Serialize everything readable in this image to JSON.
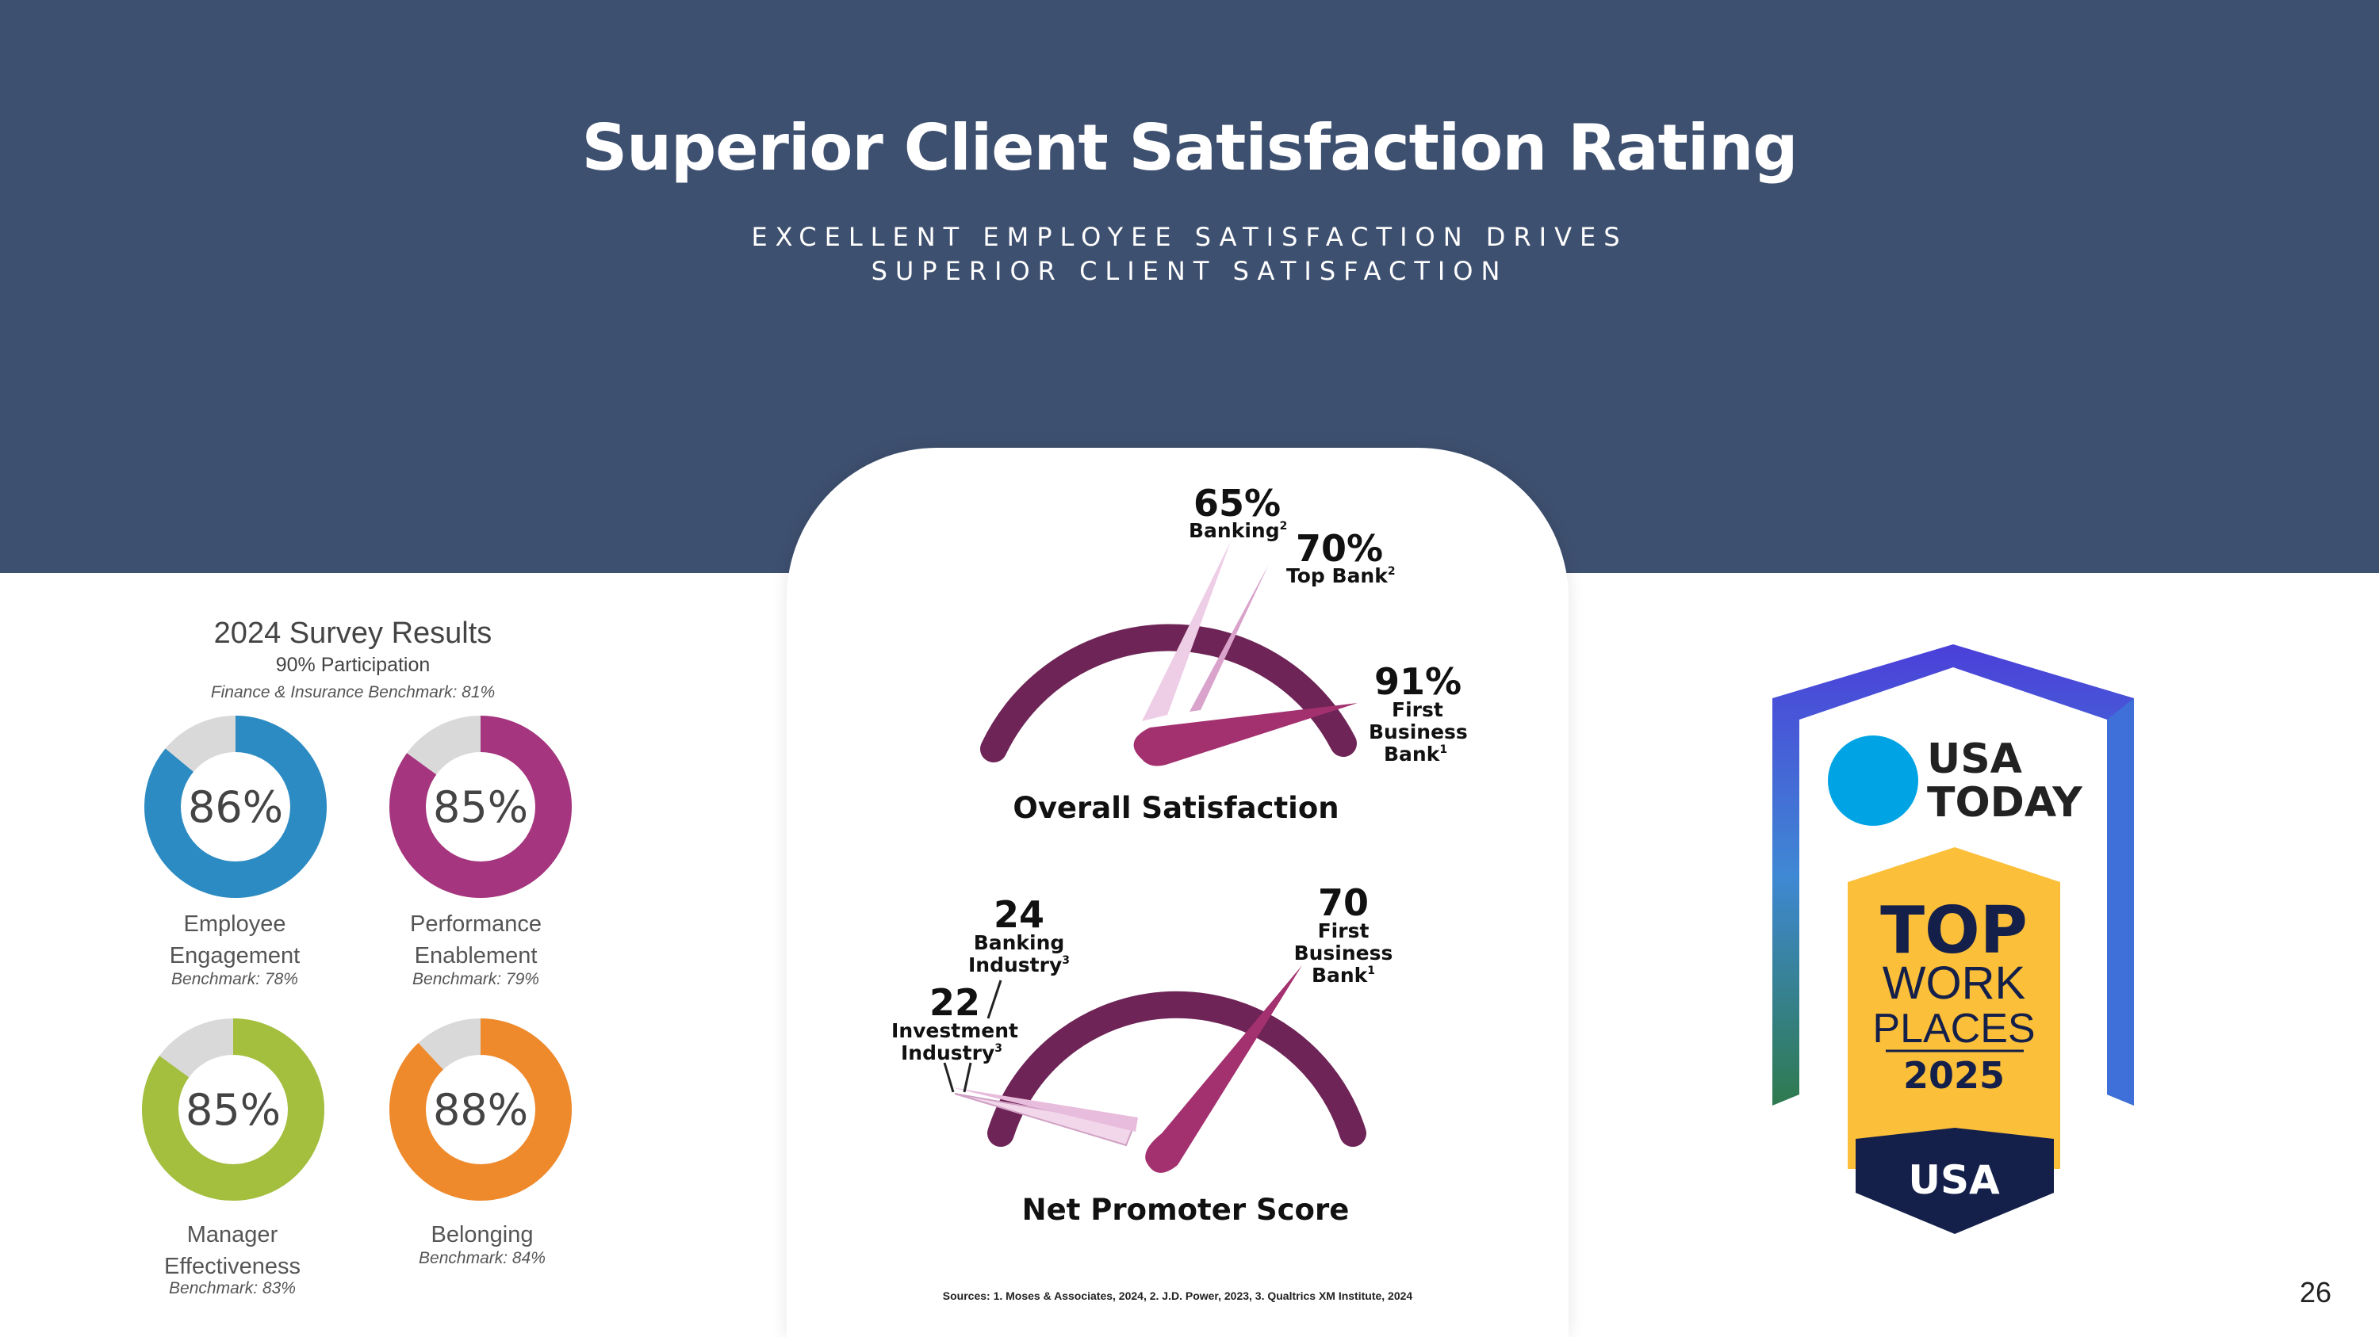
{
  "header": {
    "title": "Superior Client Satisfaction Rating",
    "subtitle_line1": "EXCELLENT EMPLOYEE SATISFACTION DRIVES",
    "subtitle_line2": "SUPERIOR CLIENT SATISFACTION"
  },
  "survey": {
    "title": "2024 Survey Results",
    "participation": "90% Participation",
    "benchmark": "Finance & Insurance Benchmark: 81%",
    "metrics": [
      {
        "value": "86%",
        "percent": 86,
        "label_line1": "Employee",
        "label_line2": "Engagement",
        "benchmark": "Benchmark: 78%",
        "color": "#2b8bc2"
      },
      {
        "value": "85%",
        "percent": 85,
        "label_line1": "Performance",
        "label_line2": "Enablement",
        "benchmark": "Benchmark: 79%",
        "color": "#a5357e"
      },
      {
        "value": "85%",
        "percent": 85,
        "label_line1": "Manager",
        "label_line2": "Effectiveness",
        "benchmark": "Benchmark: 83%",
        "color": "#a3bf3d"
      },
      {
        "value": "88%",
        "percent": 88,
        "label_line1": "Belonging",
        "label_line2": "",
        "benchmark": "Benchmark: 84%",
        "color": "#ef8a2c"
      }
    ],
    "track_color": "#d9d9d9"
  },
  "overall_satisfaction": {
    "title": "Overall Satisfaction",
    "pointers": [
      {
        "value": "65%",
        "label": "Banking",
        "sup": "2",
        "percent": 65
      },
      {
        "value": "70%",
        "label": "Top Bank",
        "sup": "2",
        "percent": 70
      },
      {
        "value": "91%",
        "label_line1": "First",
        "label_line2": "Business",
        "label_line3": "Bank",
        "sup": "1",
        "percent": 91
      }
    ]
  },
  "net_promoter": {
    "title": "Net Promoter Score",
    "pointers": [
      {
        "value": "24",
        "label_line1": "Banking",
        "label_line2": "Industry",
        "sup": "3",
        "score": 24
      },
      {
        "value": "22",
        "label_line1": "Investment",
        "label_line2": "Industry",
        "sup": "3",
        "score": 22
      },
      {
        "value": "70",
        "label_line1": "First",
        "label_line2": "Business",
        "label_line3": "Bank",
        "sup": "1",
        "score": 70
      }
    ]
  },
  "colors": {
    "header_bg": "#3e5070",
    "gauge_arc": "#6e2456",
    "needle_main": "#a3306f",
    "needle_light": "#eecde6",
    "needle_mid": "#d9a3cc"
  },
  "sources": "Sources: 1. Moses & Associates, 2024, 2. J.D. Power, 2023, 3. Qualtrics XM Institute, 2024",
  "badge": {
    "brand_line1": "USA",
    "brand_line2": "TODAY",
    "top": "TOP",
    "work": "WORK",
    "places": "PLACES",
    "year": "2025",
    "country": "USA"
  },
  "page_number": "26"
}
